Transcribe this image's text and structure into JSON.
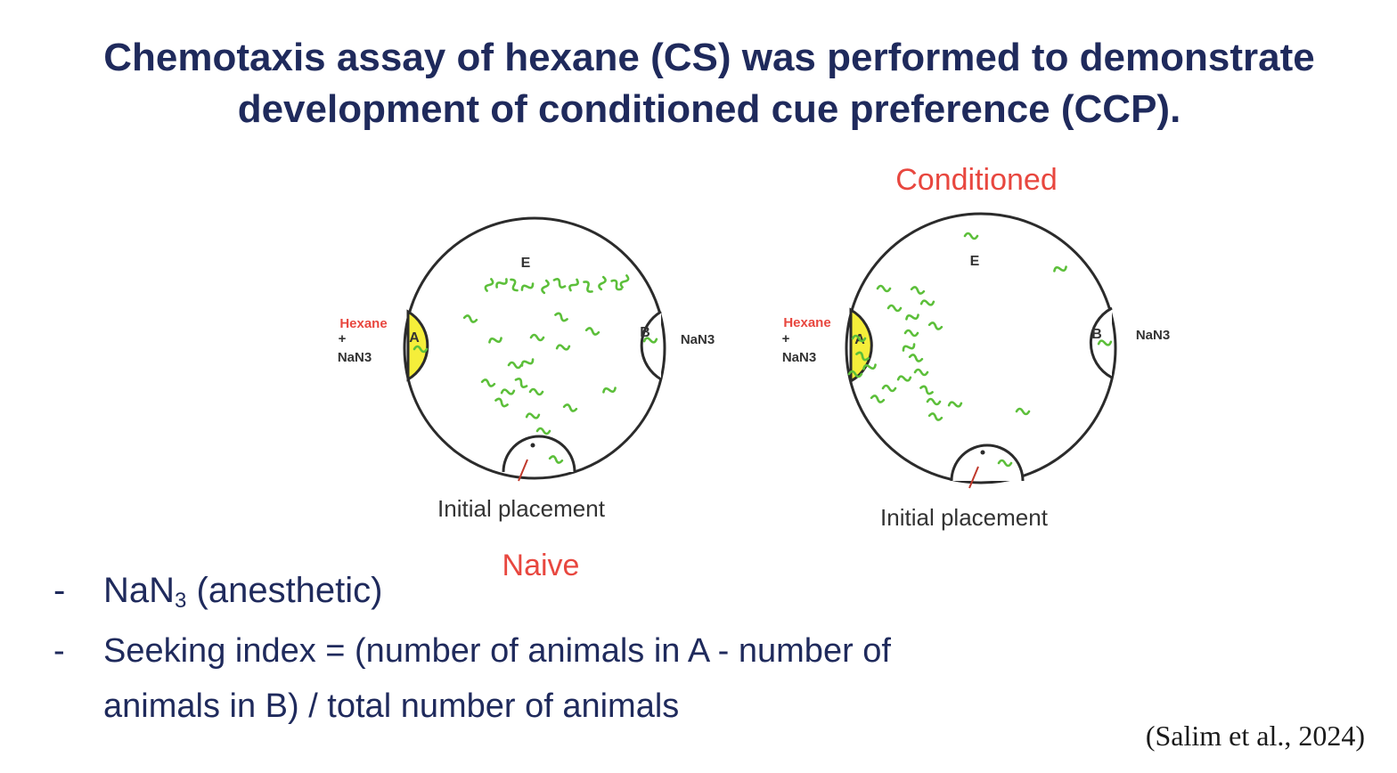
{
  "title": {
    "line1": "Chemotaxis assay of hexane (CS) was performed to demonstrate",
    "line2": "development of conditioned cue preference (CCP)."
  },
  "figure": {
    "naive": {
      "caption": "Naive",
      "top_label": "E",
      "zone_a_label": "A",
      "zone_b_label": "B",
      "left_label_red": "Hexane",
      "left_label_plus": "+",
      "left_label_black": "NaN3",
      "right_label": "NaN3",
      "bottom_label": "Initial placement"
    },
    "conditioned": {
      "caption": "Conditioned",
      "top_label": "E",
      "zone_a_label": "A",
      "zone_b_label": "B",
      "left_label_red": "Hexane",
      "left_label_plus": "+",
      "left_label_black": "NaN3",
      "right_label": "NaN3",
      "bottom_label": "Initial placement"
    },
    "colors": {
      "worm": "#5cbf3a",
      "zone_a": "#f5ee3a",
      "caption": "#e8473f",
      "text": "#1f2a5c"
    }
  },
  "bullets": {
    "dash": "-",
    "item1_main": "NaN",
    "item1_sub": "3",
    "item1_rest": " (anesthetic)",
    "item2_line1": "Seeking index = (number of animals in A - number of",
    "item2_line2": "animals in B) / total number of animals"
  },
  "citation": "(Salim et al., 2024)"
}
